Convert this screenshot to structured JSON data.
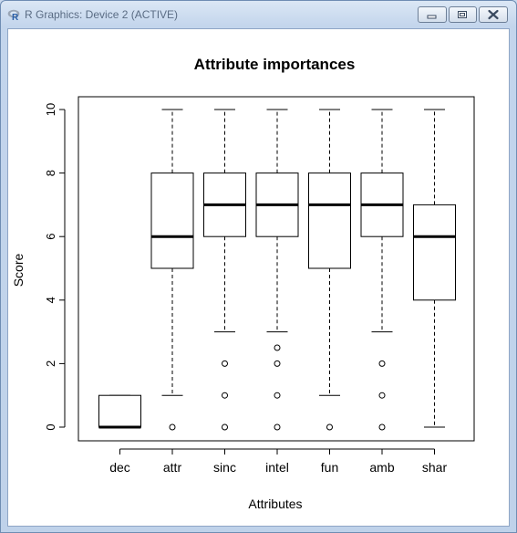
{
  "window": {
    "title": "R Graphics: Device 2 (ACTIVE)",
    "controls": {
      "minimize": "minimize-icon",
      "maximize": "maximize-icon",
      "close": "close-icon"
    },
    "app_icon": "r-logo-icon"
  },
  "chart_data": {
    "type": "boxplot",
    "title": "Attribute importances",
    "xlabel": "Attributes",
    "ylabel": "Score",
    "ylim": [
      0,
      10
    ],
    "yticks": [
      0,
      2,
      4,
      6,
      8,
      10
    ],
    "grid": false,
    "categories": [
      "dec",
      "attr",
      "sinc",
      "intel",
      "fun",
      "amb",
      "shar"
    ],
    "boxes": [
      {
        "name": "dec",
        "whisker_low": 0,
        "q1": 0,
        "median": 0,
        "q3": 1,
        "whisker_high": 1,
        "outliers": []
      },
      {
        "name": "attr",
        "whisker_low": 1,
        "q1": 5,
        "median": 6,
        "q3": 8,
        "whisker_high": 10,
        "outliers": [
          0
        ]
      },
      {
        "name": "sinc",
        "whisker_low": 3,
        "q1": 6,
        "median": 7,
        "q3": 8,
        "whisker_high": 10,
        "outliers": [
          0,
          1,
          2
        ]
      },
      {
        "name": "intel",
        "whisker_low": 3,
        "q1": 6,
        "median": 7,
        "q3": 8,
        "whisker_high": 10,
        "outliers": [
          0,
          1,
          2,
          2.5
        ]
      },
      {
        "name": "fun",
        "whisker_low": 1,
        "q1": 5,
        "median": 7,
        "q3": 8,
        "whisker_high": 10,
        "outliers": [
          0
        ]
      },
      {
        "name": "amb",
        "whisker_low": 3,
        "q1": 6,
        "median": 7,
        "q3": 8,
        "whisker_high": 10,
        "outliers": [
          0,
          1,
          2
        ]
      },
      {
        "name": "shar",
        "whisker_low": 0,
        "q1": 4,
        "median": 6,
        "q3": 7,
        "whisker_high": 10,
        "outliers": []
      }
    ]
  }
}
